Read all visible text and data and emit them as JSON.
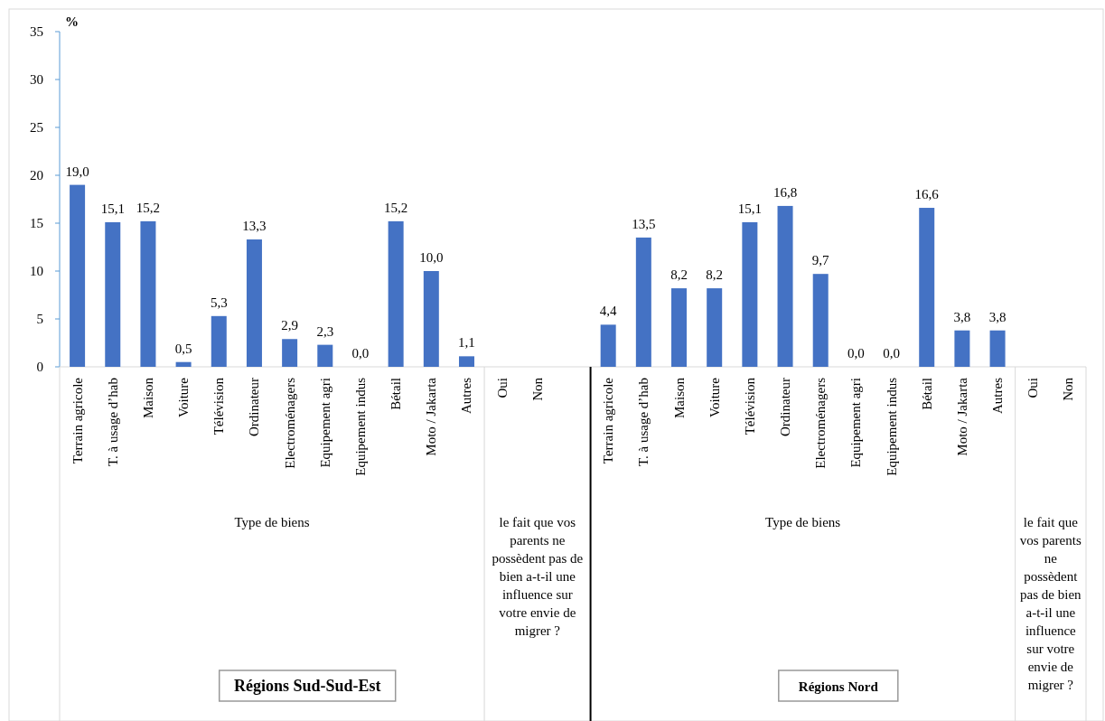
{
  "chart_data": {
    "type": "bar",
    "ylabel": "%",
    "categories": [
      "Terrain agricole",
      "T. à usage d’hab",
      "Maison",
      "Voiture",
      "Télévision",
      "Ordinateur",
      "Electroménagers",
      "Equipement agri",
      "Equipement indus",
      "Bétail",
      "Moto / Jakarta",
      "Autres",
      "Oui",
      "Non",
      null,
      "Terrain agricole",
      "T. à usage d’hab",
      "Maison",
      "Voiture",
      "Télévision",
      "Ordinateur",
      "Electroménagers",
      "Equipement agri",
      "Equipement indus",
      "Bétail",
      "Moto / Jakarta",
      "Autres",
      "Oui",
      "Non"
    ],
    "values": [
      19.0,
      15.1,
      15.2,
      0.5,
      5.3,
      13.3,
      2.9,
      2.3,
      0.0,
      15.2,
      10.0,
      1.1,
      null,
      null,
      null,
      4.4,
      13.5,
      8.2,
      8.2,
      15.1,
      16.8,
      9.7,
      0.0,
      0.0,
      16.6,
      3.8,
      3.8,
      null,
      null
    ],
    "value_labels": [
      "19,0",
      "15,1",
      "15,2",
      "0,5",
      "5,3",
      "13,3",
      "2,9",
      "2,3",
      "0,0",
      "15,2",
      "10,0",
      "1,1",
      null,
      null,
      null,
      "4,4",
      "13,5",
      "8,2",
      "8,2",
      "15,1",
      "16,8",
      "9,7",
      "0,0",
      "0,0",
      "16,6",
      "3,8",
      "3,8",
      null,
      null
    ],
    "color": "#4472c4",
    "ylim": [
      0,
      35
    ],
    "yticks": [
      0,
      5,
      10,
      15,
      20,
      25,
      30,
      35
    ],
    "annotations": [
      "Type de biens",
      "le fait que vos parents ne possèdent pas de bien a-t-il une influence sur votre envie de migrer ?",
      "Type de biens",
      "le fait que vos parents ne possèdent pas de bien a-t-il une influence sur votre envie de migrer ?",
      "Régions Sud-Sud-Est",
      "Régions Nord"
    ]
  }
}
